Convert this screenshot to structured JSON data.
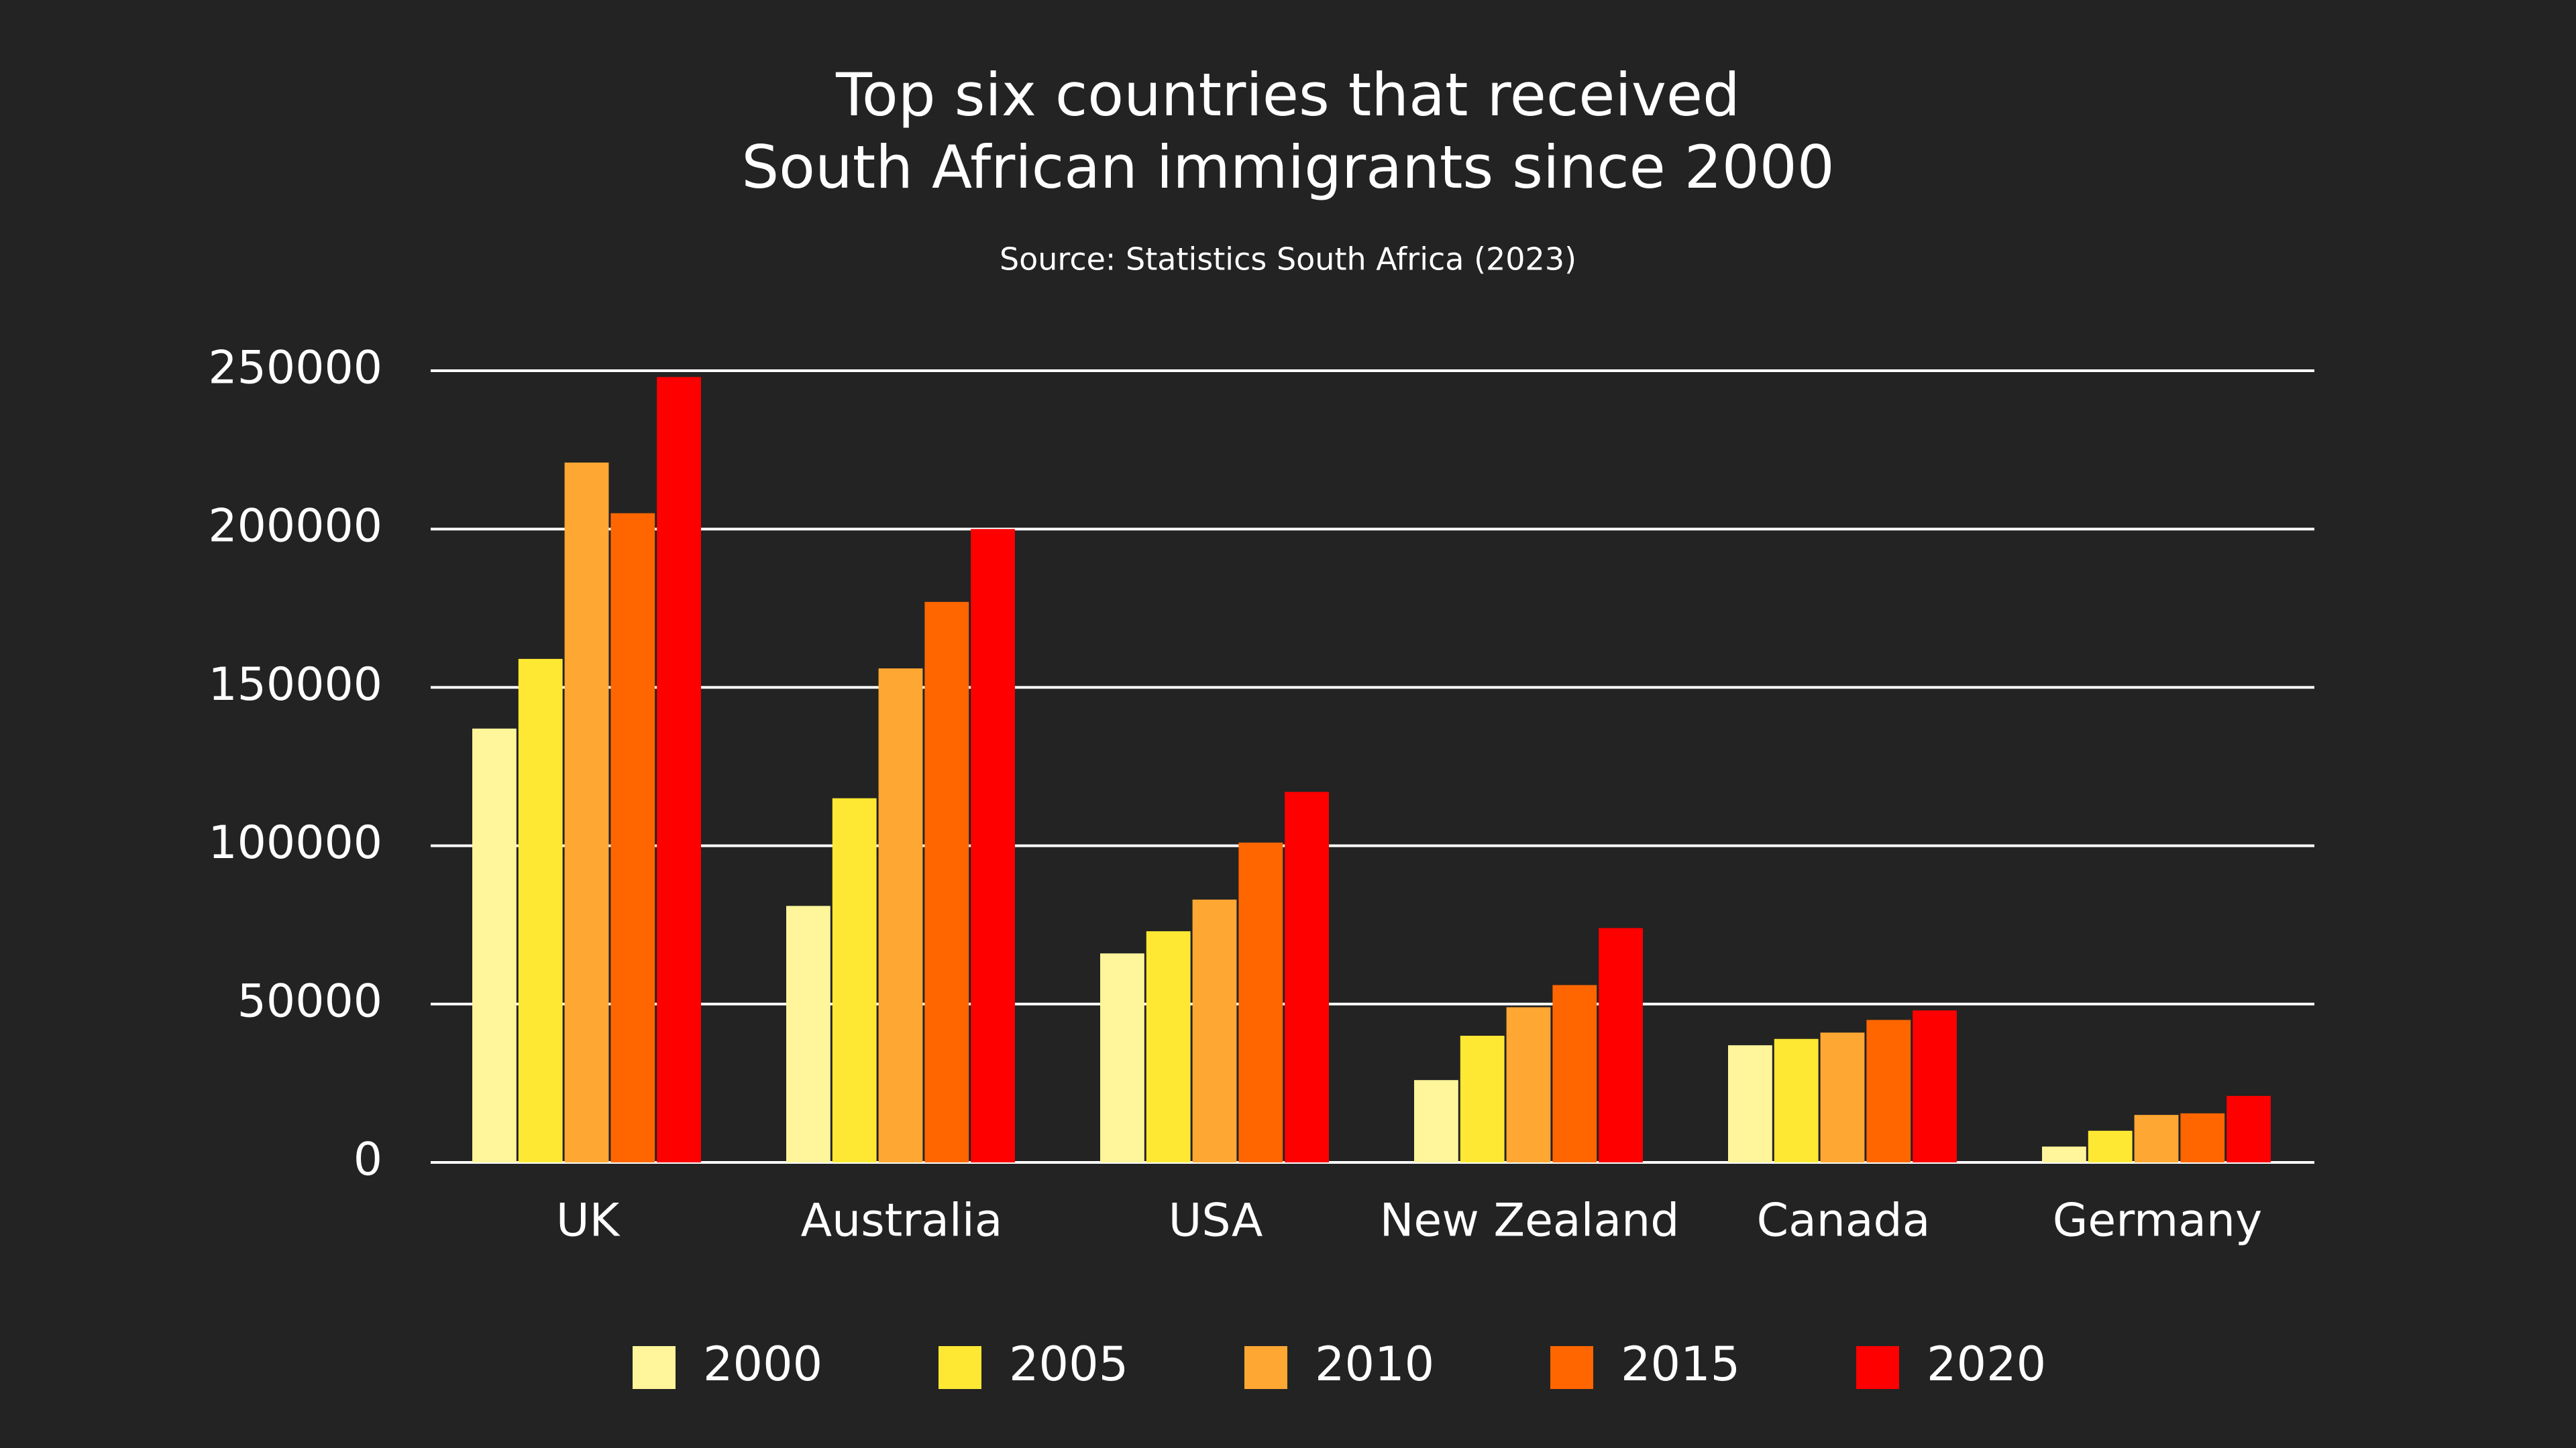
{
  "chart_data": {
    "type": "bar",
    "title": [
      "Top six countries that received",
      "South African immigrants since 2000"
    ],
    "subtitle": "Source: Statistics South Africa (2023)",
    "categories": [
      "UK",
      "Australia",
      "USA",
      "New Zealand",
      "Canada",
      "Germany"
    ],
    "series": [
      {
        "name": "2000",
        "color": "#fff59a",
        "values": [
          137000,
          81000,
          66000,
          26000,
          37000,
          5000
        ]
      },
      {
        "name": "2005",
        "color": "#ffe833",
        "values": [
          159000,
          115000,
          73000,
          40000,
          39000,
          10000
        ]
      },
      {
        "name": "2010",
        "color": "#ffa733",
        "values": [
          221000,
          156000,
          83000,
          49000,
          41000,
          15000
        ]
      },
      {
        "name": "2015",
        "color": "#ff6600",
        "values": [
          205000,
          177000,
          101000,
          56000,
          45000,
          15500
        ]
      },
      {
        "name": "2020",
        "color": "#ff0000",
        "values": [
          248000,
          200000,
          117000,
          74000,
          48000,
          21000
        ]
      }
    ],
    "ylim": [
      0,
      250000
    ],
    "yticks": [
      0,
      50000,
      100000,
      150000,
      200000,
      250000
    ],
    "grid": true,
    "legend": "bottom"
  }
}
